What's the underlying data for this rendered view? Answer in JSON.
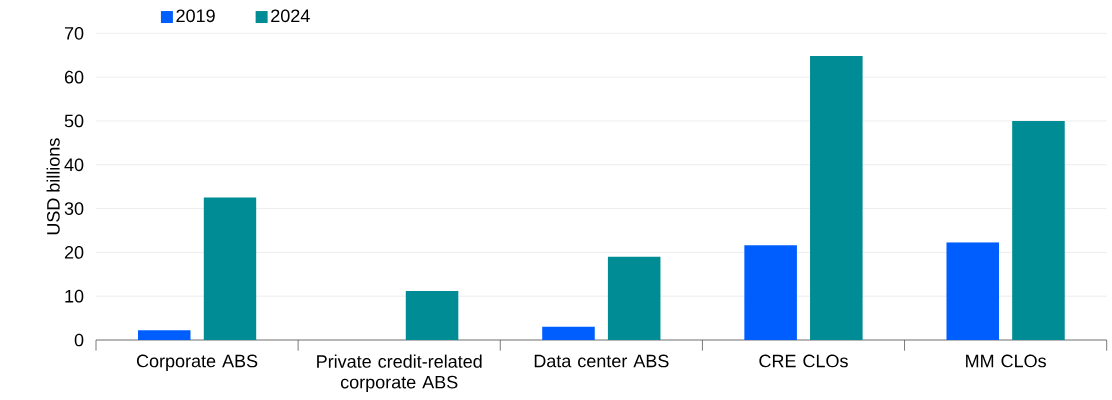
{
  "chart_data": {
    "type": "bar",
    "ylabel": "USD billions",
    "categories": [
      "Corporate ABS",
      "Private credit-related corporate ABS",
      "Data center ABS",
      "CRE CLOs",
      "MM CLOs"
    ],
    "series": [
      {
        "name": "2019",
        "color": "#005eff",
        "values": [
          2.2,
          null,
          3.0,
          21.6,
          22.3
        ]
      },
      {
        "name": "2024",
        "color": "#008c94",
        "values": [
          32.5,
          11.2,
          19.0,
          64.8,
          50.0
        ]
      }
    ],
    "ylim": [
      0,
      70
    ],
    "yticks": [
      0,
      10,
      20,
      30,
      40,
      50,
      60,
      70
    ],
    "grid": "y",
    "legend": "top left"
  }
}
